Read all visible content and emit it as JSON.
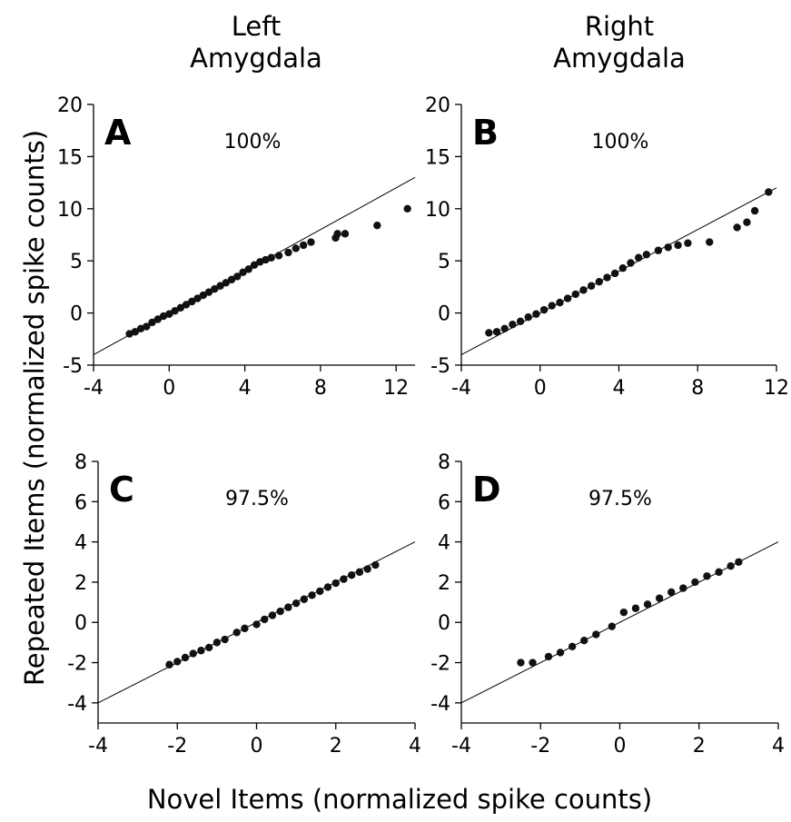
{
  "column_titles": {
    "left": [
      "Left",
      "Amygdala"
    ],
    "right": [
      "Right",
      "Amygdala"
    ]
  },
  "shared_labels": {
    "ylabel": "Repeated Items (normalized spike counts)",
    "xlabel": "Novel Items (normalized spike counts)"
  },
  "chart_data": [
    {
      "type": "scatter",
      "panel": "A",
      "annotation": "100%",
      "xlim": [
        -4,
        13
      ],
      "ylim": [
        -5,
        20
      ],
      "xticks": [
        -4,
        0,
        4,
        8,
        12
      ],
      "yticks": [
        -5,
        0,
        5,
        10,
        15,
        20
      ],
      "reference_line": {
        "x": [
          -4,
          13
        ],
        "y": [
          -4,
          13
        ]
      },
      "points": [
        [
          -2.1,
          -2.0
        ],
        [
          -1.8,
          -1.8
        ],
        [
          -1.5,
          -1.5
        ],
        [
          -1.2,
          -1.3
        ],
        [
          -0.9,
          -0.9
        ],
        [
          -0.6,
          -0.6
        ],
        [
          -0.3,
          -0.3
        ],
        [
          0,
          -0.1
        ],
        [
          0.3,
          0.2
        ],
        [
          0.6,
          0.5
        ],
        [
          0.9,
          0.8
        ],
        [
          1.2,
          1.1
        ],
        [
          1.5,
          1.4
        ],
        [
          1.8,
          1.7
        ],
        [
          2.1,
          2.0
        ],
        [
          2.4,
          2.3
        ],
        [
          2.7,
          2.6
        ],
        [
          3.0,
          2.9
        ],
        [
          3.3,
          3.2
        ],
        [
          3.6,
          3.5
        ],
        [
          3.9,
          3.9
        ],
        [
          4.2,
          4.2
        ],
        [
          4.5,
          4.6
        ],
        [
          4.8,
          4.9
        ],
        [
          5.1,
          5.1
        ],
        [
          5.4,
          5.3
        ],
        [
          5.8,
          5.5
        ],
        [
          6.3,
          5.8
        ],
        [
          6.7,
          6.2
        ],
        [
          7.1,
          6.5
        ],
        [
          7.5,
          6.8
        ],
        [
          8.8,
          7.2
        ],
        [
          8.9,
          7.6
        ],
        [
          9.3,
          7.6
        ],
        [
          11.0,
          8.4
        ],
        [
          12.6,
          10.0
        ]
      ]
    },
    {
      "type": "scatter",
      "panel": "B",
      "annotation": "100%",
      "xlim": [
        -4,
        12
      ],
      "ylim": [
        -5,
        20
      ],
      "xticks": [
        -4,
        0,
        4,
        8,
        12
      ],
      "yticks": [
        -5,
        0,
        5,
        10,
        15,
        20
      ],
      "reference_line": {
        "x": [
          -4,
          12
        ],
        "y": [
          -4,
          12
        ]
      },
      "points": [
        [
          -2.6,
          -1.9
        ],
        [
          -2.2,
          -1.8
        ],
        [
          -1.8,
          -1.5
        ],
        [
          -1.4,
          -1.1
        ],
        [
          -1.0,
          -0.8
        ],
        [
          -0.6,
          -0.4
        ],
        [
          -0.2,
          -0.1
        ],
        [
          0.2,
          0.3
        ],
        [
          0.6,
          0.7
        ],
        [
          1.0,
          1.0
        ],
        [
          1.4,
          1.4
        ],
        [
          1.8,
          1.8
        ],
        [
          2.2,
          2.2
        ],
        [
          2.6,
          2.6
        ],
        [
          3.0,
          3.0
        ],
        [
          3.4,
          3.4
        ],
        [
          3.8,
          3.8
        ],
        [
          4.2,
          4.3
        ],
        [
          4.6,
          4.8
        ],
        [
          5.0,
          5.3
        ],
        [
          5.4,
          5.6
        ],
        [
          6.0,
          6.0
        ],
        [
          6.5,
          6.3
        ],
        [
          7.0,
          6.5
        ],
        [
          7.5,
          6.7
        ],
        [
          8.6,
          6.8
        ],
        [
          10.0,
          8.2
        ],
        [
          10.5,
          8.7
        ],
        [
          10.9,
          9.8
        ],
        [
          11.6,
          11.6
        ]
      ]
    },
    {
      "type": "scatter",
      "panel": "C",
      "annotation": "97.5%",
      "xlim": [
        -4,
        4
      ],
      "ylim": [
        -5,
        8
      ],
      "xticks": [
        -4,
        -2,
        0,
        2,
        4
      ],
      "yticks": [
        -4,
        -2,
        0,
        2,
        4,
        6,
        8
      ],
      "reference_line": {
        "x": [
          -4,
          4
        ],
        "y": [
          -4,
          4
        ]
      },
      "points": [
        [
          -2.2,
          -2.1
        ],
        [
          -2.0,
          -1.95
        ],
        [
          -1.8,
          -1.75
        ],
        [
          -1.6,
          -1.55
        ],
        [
          -1.4,
          -1.4
        ],
        [
          -1.2,
          -1.25
        ],
        [
          -1.0,
          -1.0
        ],
        [
          -0.8,
          -0.85
        ],
        [
          -0.5,
          -0.5
        ],
        [
          -0.3,
          -0.3
        ],
        [
          0,
          -0.1
        ],
        [
          0.2,
          0.15
        ],
        [
          0.4,
          0.35
        ],
        [
          0.6,
          0.55
        ],
        [
          0.8,
          0.75
        ],
        [
          1.0,
          0.95
        ],
        [
          1.2,
          1.15
        ],
        [
          1.4,
          1.35
        ],
        [
          1.6,
          1.55
        ],
        [
          1.8,
          1.75
        ],
        [
          2.0,
          1.95
        ],
        [
          2.2,
          2.15
        ],
        [
          2.4,
          2.35
        ],
        [
          2.6,
          2.5
        ],
        [
          2.8,
          2.65
        ],
        [
          3.0,
          2.85
        ]
      ]
    },
    {
      "type": "scatter",
      "panel": "D",
      "annotation": "97.5%",
      "xlim": [
        -4,
        4
      ],
      "ylim": [
        -5,
        8
      ],
      "xticks": [
        -4,
        -2,
        0,
        2,
        4
      ],
      "yticks": [
        -4,
        -2,
        0,
        2,
        4,
        6,
        8
      ],
      "reference_line": {
        "x": [
          -4,
          4
        ],
        "y": [
          -4,
          4
        ]
      },
      "points": [
        [
          -2.5,
          -2.0
        ],
        [
          -2.2,
          -2.0
        ],
        [
          -1.8,
          -1.7
        ],
        [
          -1.5,
          -1.5
        ],
        [
          -1.2,
          -1.2
        ],
        [
          -0.9,
          -0.9
        ],
        [
          -0.6,
          -0.6
        ],
        [
          -0.2,
          -0.2
        ],
        [
          0.1,
          0.5
        ],
        [
          0.4,
          0.7
        ],
        [
          0.7,
          0.9
        ],
        [
          1.0,
          1.2
        ],
        [
          1.3,
          1.5
        ],
        [
          1.6,
          1.7
        ],
        [
          1.9,
          2.0
        ],
        [
          2.2,
          2.3
        ],
        [
          2.5,
          2.5
        ],
        [
          2.8,
          2.8
        ],
        [
          3.0,
          3.0
        ]
      ]
    }
  ]
}
